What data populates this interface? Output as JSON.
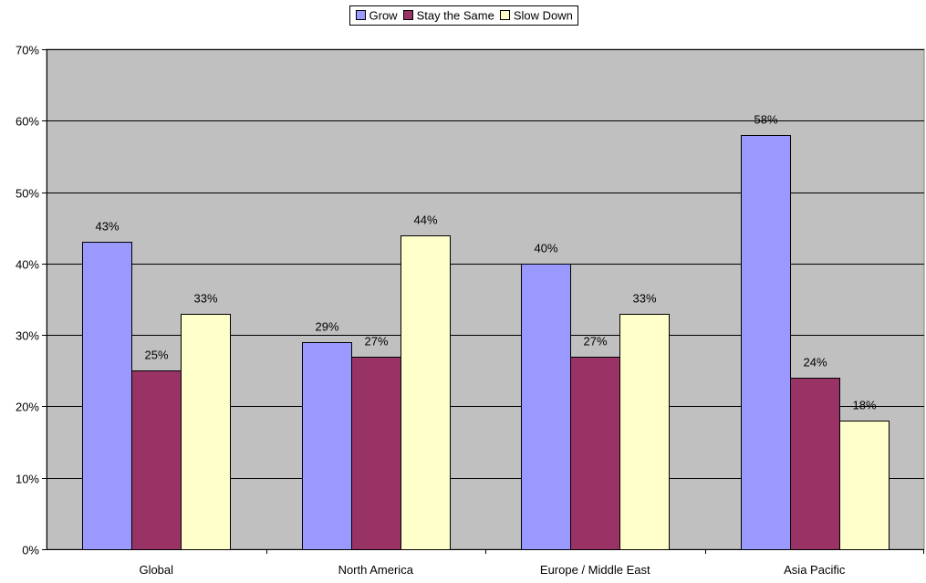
{
  "chart_data": {
    "type": "bar",
    "categories": [
      "Global",
      "North America",
      "Europe / Middle East",
      "Asia Pacific"
    ],
    "series": [
      {
        "name": "Grow",
        "values": [
          43,
          29,
          40,
          58
        ],
        "color": "#9999ff"
      },
      {
        "name": "Stay the Same",
        "values": [
          25,
          27,
          27,
          24
        ],
        "color": "#993366"
      },
      {
        "name": "Slow Down",
        "values": [
          33,
          44,
          33,
          18
        ],
        "color": "#ffffcc"
      }
    ],
    "value_suffix": "%",
    "ylim": [
      0,
      70
    ],
    "yticks": [
      0,
      10,
      20,
      30,
      40,
      50,
      60,
      70
    ],
    "ytick_labels": [
      "0%",
      "10%",
      "20%",
      "30%",
      "40%",
      "50%",
      "60%",
      "70%"
    ],
    "grid": true,
    "plot_background": "#c0c0c0",
    "legend_position": "top-center",
    "title": "",
    "xlabel": "",
    "ylabel": ""
  }
}
